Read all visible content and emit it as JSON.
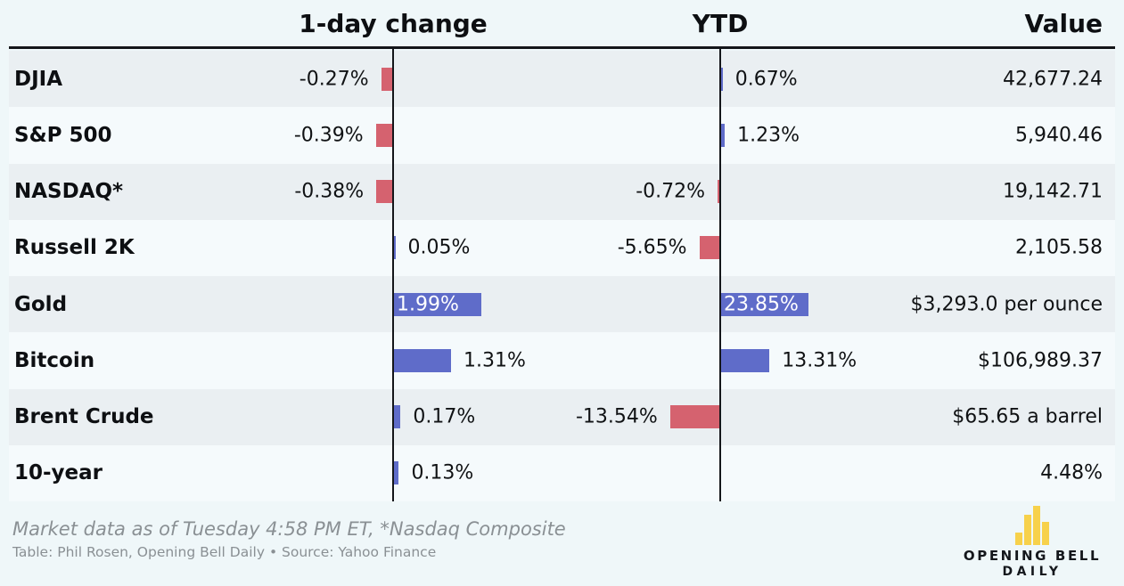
{
  "chart_data": {
    "type": "bar",
    "orientation": "horizontal",
    "categories": [
      "DJIA",
      "S&P 500",
      "NASDAQ*",
      "Russell 2K",
      "Gold",
      "Bitcoin",
      "Brent Crude",
      "10-year"
    ],
    "series": [
      {
        "name": "1-day change",
        "values": [
          -0.27,
          -0.39,
          -0.38,
          0.05,
          1.99,
          1.31,
          0.17,
          0.13
        ],
        "labels": [
          "-0.27%",
          "-0.39%",
          "-0.38%",
          "0.05%",
          "1.99%",
          "1.31%",
          "0.17%",
          "0.13%"
        ]
      },
      {
        "name": "YTD",
        "values": [
          0.67,
          1.23,
          -0.72,
          -5.65,
          23.85,
          13.31,
          -13.54,
          null
        ],
        "labels": [
          "0.67%",
          "1.23%",
          "-0.72%",
          "-5.65%",
          "23.85%",
          "13.31%",
          "-13.54%",
          ""
        ]
      }
    ],
    "value_column_name": "Value",
    "values_column": [
      "42,677.24",
      "5,940.46",
      "19,142.71",
      "2,105.58",
      "$3,293.0 per ounce",
      "$106,989.37",
      "$65.65 a barrel",
      "4.48%"
    ],
    "positive_color": "#5F6CC9",
    "negative_color": "#D5626F",
    "legend_position": "none",
    "grid": false
  },
  "footer": {
    "note": "Market data as of Tuesday 4:58 PM ET, *Nasdaq Composite",
    "credit": "Table: Phil Rosen, Opening Bell Daily • Source: Yahoo Finance"
  },
  "logo": {
    "line1": "OPENING BELL",
    "line2": "DAILY",
    "icon": "bar-chart-icon",
    "icon_color": "#F7D14B",
    "icon_bar_heights": [
      14,
      34,
      44,
      26
    ]
  },
  "colors": {
    "background": "#EFF7F9",
    "stripe_dark": "#EAEFF2",
    "stripe_light": "#F5FAFC",
    "axis": "#14161a",
    "text": "#101214",
    "footnote": "#8A9094",
    "inside_bar_label": "#FFFFFF"
  }
}
